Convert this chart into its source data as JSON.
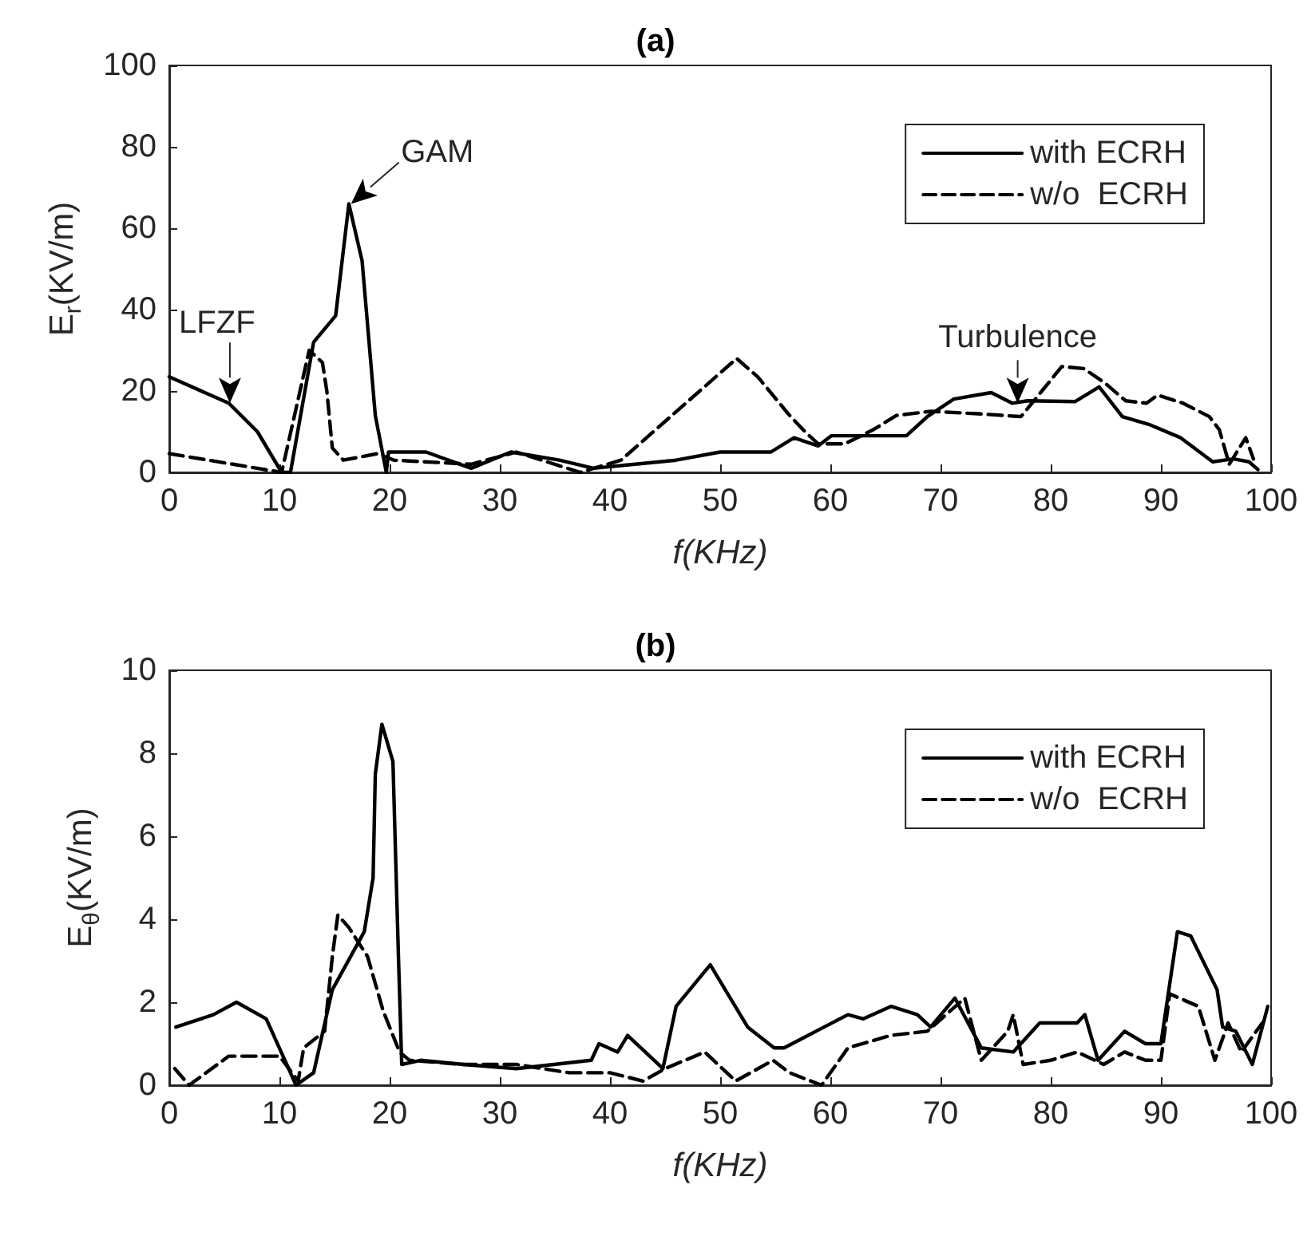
{
  "chart_data": [
    {
      "type": "line",
      "title": "(a)",
      "xlabel": "f(KHz)",
      "ylabel": "E$_{r}$(KV/m)",
      "xlim": [
        0,
        100
      ],
      "xticks": [
        0,
        10,
        20,
        30,
        40,
        50,
        60,
        70,
        80,
        90,
        100
      ],
      "ylim": [
        0,
        100
      ],
      "yticks": [
        0,
        20,
        40,
        60,
        80,
        100
      ],
      "grid": false,
      "legend": "top right",
      "marker": "none",
      "annotations": [
        {
          "text": "LFZF",
          "x": 5.5,
          "y": 17
        },
        {
          "text": "GAM",
          "x": 16.5,
          "y": 66
        },
        {
          "text": "Turbulence",
          "x": 77,
          "y": 17
        }
      ],
      "series": [
        {
          "name": "with ECRH",
          "color": "#000000",
          "line_style": "solid",
          "x": [
            0,
            5.4,
            8,
            10.2,
            11,
            13.1,
            15.1,
            16.3,
            17.5,
            18.7,
            19.7,
            19.9,
            23.3,
            27.4,
            31,
            35.4,
            38.5,
            46,
            50,
            54.6,
            56.7,
            58.9,
            60.1,
            64,
            66.9,
            68.8,
            71.2,
            74.6,
            76.5,
            77.9,
            82.2,
            84.4,
            86.5,
            88.9,
            91.8,
            94.7,
            96.6,
            98,
            98.8
          ],
          "values": [
            23.5,
            17,
            10,
            0,
            0,
            32,
            38.5,
            66,
            52,
            14,
            0,
            5,
            5,
            1,
            5,
            3,
            1,
            3,
            5,
            5,
            8.5,
            6.5,
            9,
            9,
            9,
            13.7,
            18,
            19.6,
            17,
            17.6,
            17.4,
            21,
            13.7,
            11.8,
            8.5,
            2.6,
            3.3,
            2.6,
            0.7
          ]
        },
        {
          "name": "w/o  ECRH",
          "color": "#000000",
          "line_style": "dashed",
          "x": [
            0,
            8,
            10.2,
            12.7,
            13.9,
            14.3,
            14.8,
            15.8,
            18.9,
            20.4,
            27.4,
            31.5,
            37.3,
            41,
            51.5,
            53.4,
            56.3,
            57.7,
            58.9,
            61.3,
            63.9,
            66,
            69.1,
            73.4,
            77.3,
            79.2,
            81,
            83,
            84.9,
            86.8,
            88.7,
            89.7,
            92,
            94.4,
            95.3,
            96.2,
            97.7,
            98.4
          ],
          "values": [
            4.6,
            1,
            0,
            30,
            27,
            20,
            6,
            3,
            4.6,
            3,
            2,
            5,
            0,
            3,
            28,
            23.5,
            14,
            10,
            7,
            7,
            10.5,
            14,
            15,
            14.4,
            13.7,
            20,
            26,
            25.5,
            22,
            17.6,
            17,
            19,
            17,
            13.7,
            10.5,
            2,
            8.5,
            3.3
          ]
        }
      ]
    },
    {
      "type": "line",
      "title": "(b)",
      "xlabel": "f(KHz)",
      "ylabel": "E$_{θ}$(KV/m)",
      "xlim": [
        0,
        100
      ],
      "xticks": [
        0,
        10,
        20,
        30,
        40,
        50,
        60,
        70,
        80,
        90,
        100
      ],
      "ylim": [
        0,
        10
      ],
      "yticks": [
        0,
        2,
        4,
        6,
        8,
        10
      ],
      "grid": false,
      "legend": "top right",
      "marker": "none",
      "series": [
        {
          "name": "with ECRH",
          "color": "#000000",
          "line_style": "solid",
          "x": [
            0.6,
            4,
            6.1,
            8.8,
            10.5,
            11.5,
            13.1,
            14.8,
            17.7,
            18.5,
            18.7,
            19.3,
            20.3,
            20.8,
            21.1,
            22.8,
            26.7,
            31.5,
            38.3,
            39,
            40.7,
            41.6,
            44.8,
            46,
            49.1,
            52.5,
            54.9,
            55.8,
            58.7,
            61.6,
            63,
            65.5,
            67.9,
            69.1,
            71.3,
            73.7,
            76.6,
            79,
            82.4,
            83.1,
            84.3,
            86.7,
            88.6,
            90,
            91.5,
            92.7,
            95.1,
            95.6,
            96.8,
            98.3,
            99.7
          ],
          "values": [
            1.4,
            1.7,
            2,
            1.6,
            0.6,
            0,
            0.3,
            2.3,
            3.7,
            5,
            7.5,
            8.7,
            7.8,
            3.1,
            0.5,
            0.6,
            0.5,
            0.4,
            0.6,
            1,
            0.8,
            1.2,
            0.4,
            1.9,
            2.9,
            1.4,
            0.9,
            0.9,
            1.3,
            1.7,
            1.6,
            1.9,
            1.7,
            1.4,
            2.1,
            0.9,
            0.8,
            1.5,
            1.5,
            1.7,
            0.6,
            1.3,
            1,
            1,
            3.7,
            3.6,
            2.3,
            1.4,
            1.3,
            0.5,
            1.9
          ]
        },
        {
          "name": "w/o  ECRH",
          "color": "#000000",
          "line_style": "dashed",
          "x": [
            0.5,
            1.8,
            5.4,
            10,
            11.7,
            12.2,
            14.1,
            14.8,
            15.3,
            16.3,
            18,
            19.4,
            20.9,
            21.8,
            26.7,
            31.5,
            36.3,
            40,
            43,
            45,
            48.6,
            51.4,
            54.8,
            56.3,
            59.2,
            61.6,
            65.5,
            68.8,
            72.2,
            73.7,
            76.1,
            76.6,
            77.5,
            80,
            82.4,
            84.8,
            86.7,
            88.6,
            90,
            90.8,
            93.4,
            94.9,
            96.1,
            97.3,
            99.2
          ],
          "values": [
            0.4,
            0,
            0.7,
            0.7,
            0.1,
            0.9,
            1.3,
            3.1,
            4.1,
            3.8,
            3.1,
            1.8,
            0.8,
            0.6,
            0.5,
            0.5,
            0.3,
            0.3,
            0.1,
            0.4,
            0.8,
            0.1,
            0.6,
            0.3,
            0,
            0.9,
            1.2,
            1.3,
            2.1,
            0.6,
            1.3,
            1.7,
            0.5,
            0.6,
            0.8,
            0.5,
            0.8,
            0.6,
            0.6,
            2.2,
            1.9,
            0.6,
            1.5,
            0.8,
            1.5
          ]
        }
      ]
    }
  ]
}
